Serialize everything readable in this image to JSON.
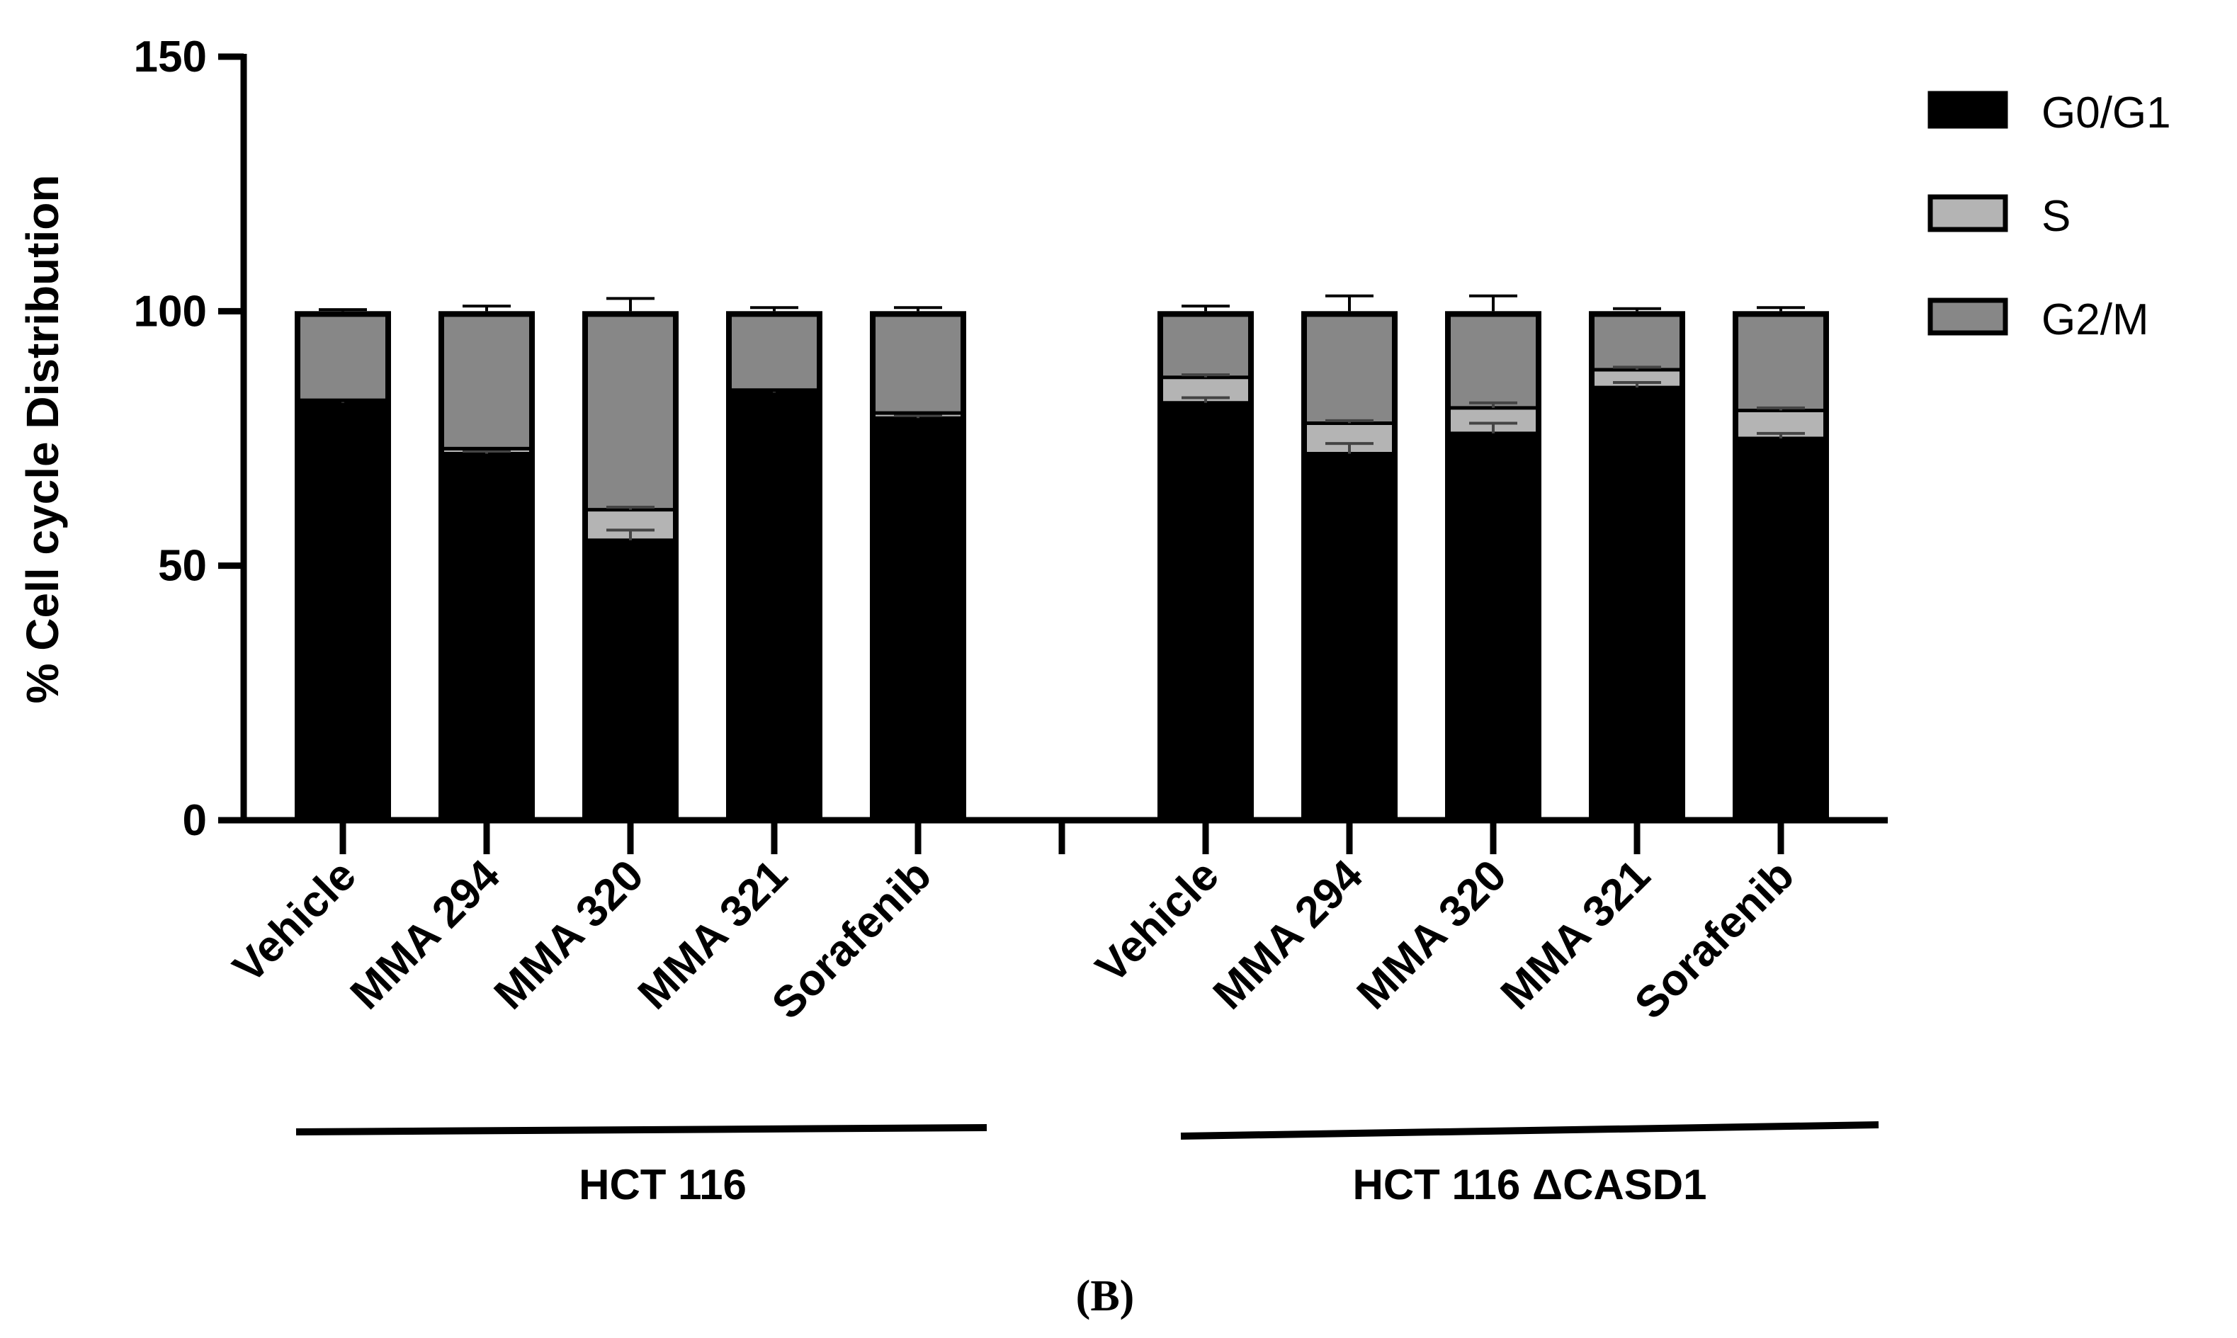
{
  "chart_data": {
    "type": "bar",
    "stacked": true,
    "ylabel": "% Cell cycle Distribution",
    "xlabel": "",
    "ylim": [
      0,
      150
    ],
    "yticks": [
      "0",
      "50",
      "100",
      "150"
    ],
    "ytick_values": [
      0,
      50,
      100,
      150
    ],
    "legend_position": "top-right",
    "categories": [
      "Vehicle",
      "MMA 294",
      "MMA 320",
      "MMA 321",
      "Sorafenib",
      "Vehicle",
      "MMA 294",
      "MMA 320",
      "MMA 321",
      "Sorafenib"
    ],
    "groups": [
      {
        "label": "HCT 116",
        "start": 0,
        "end": 4
      },
      {
        "label": "HCT 116 ΔCASD1",
        "start": 5,
        "end": 9
      }
    ],
    "series": [
      {
        "name": "G0/G1",
        "color": "#000000",
        "values": [
          82,
          72,
          55,
          84,
          79,
          82,
          72,
          76,
          85,
          75
        ],
        "error": [
          0.5,
          0.5,
          2,
          0.5,
          0.5,
          1,
          2,
          2,
          1,
          1
        ]
      },
      {
        "name": "S",
        "color": "#b4b4b4",
        "values": [
          0.5,
          1,
          6,
          0.5,
          1,
          5,
          6,
          5,
          3.5,
          5.5
        ],
        "error": [
          0,
          0,
          0.5,
          0,
          0,
          0.5,
          0.5,
          1,
          0.5,
          0.5
        ]
      },
      {
        "name": "G2/M",
        "color": "#878787",
        "values": [
          17.5,
          27,
          39,
          15.5,
          20,
          13,
          22,
          19,
          11.5,
          19.5
        ],
        "error": [
          0.3,
          1,
          2.5,
          0.7,
          0.7,
          1,
          3,
          3,
          0.5,
          0.7
        ]
      }
    ],
    "panel_label": "(B)"
  }
}
